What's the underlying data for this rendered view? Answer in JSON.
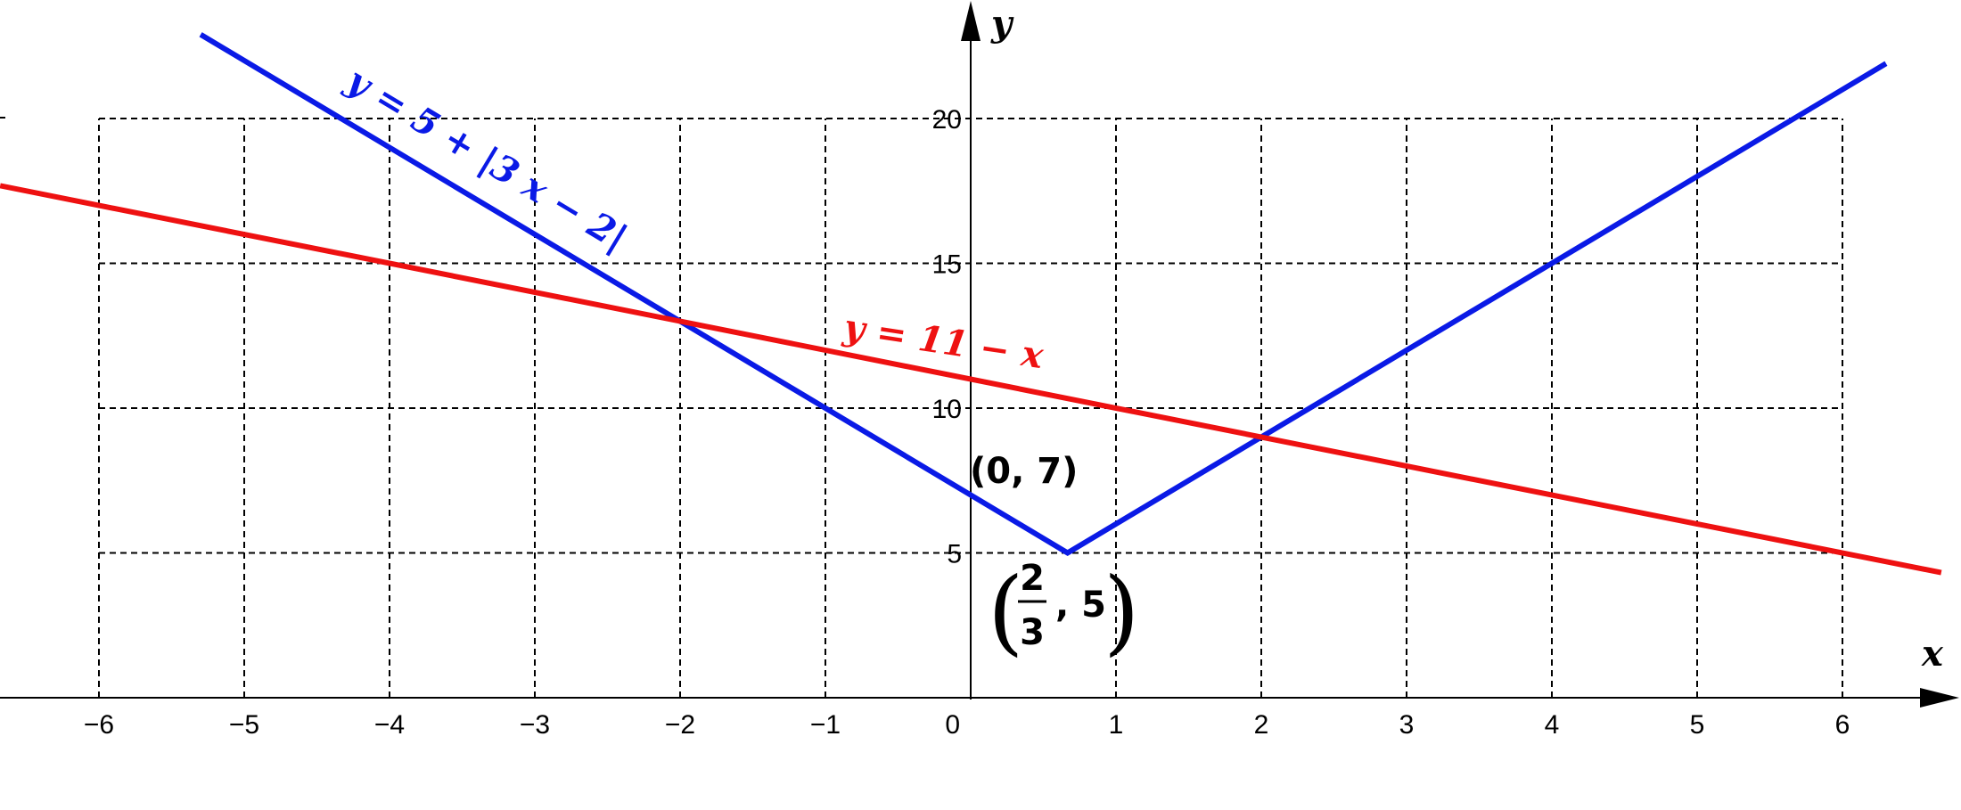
{
  "chart_data": {
    "type": "line",
    "xlabel": "x",
    "ylabel": "y",
    "xlim": [
      -6.68,
      6.68
    ],
    "ylim": [
      0,
      23.2
    ],
    "grid": true,
    "x_ticks": [
      "-6",
      "-5",
      "-4",
      "-3",
      "-2",
      "-1",
      "0",
      "1",
      "2",
      "3",
      "4",
      "5",
      "6"
    ],
    "y_ticks": [
      "5",
      "10",
      "15",
      "20"
    ],
    "series": [
      {
        "name": "y = 5 + |3 x − 2|",
        "color": "#0a1ae6",
        "x": [
          -5.3,
          0.6667,
          6.3
        ],
        "y": [
          22.9,
          5,
          21.9
        ]
      },
      {
        "name": "y = 11 − x",
        "color": "#ee1111",
        "x": [
          -6.68,
          6.68
        ],
        "y": [
          17.68,
          4.32
        ]
      }
    ],
    "annotations": [
      {
        "text": "(0, 7)",
        "x": 0,
        "y": 7
      },
      {
        "text_numerator": "2",
        "text_denominator": "3",
        "text_tail": ", 5",
        "x": 0.6667,
        "y": 5
      }
    ]
  }
}
